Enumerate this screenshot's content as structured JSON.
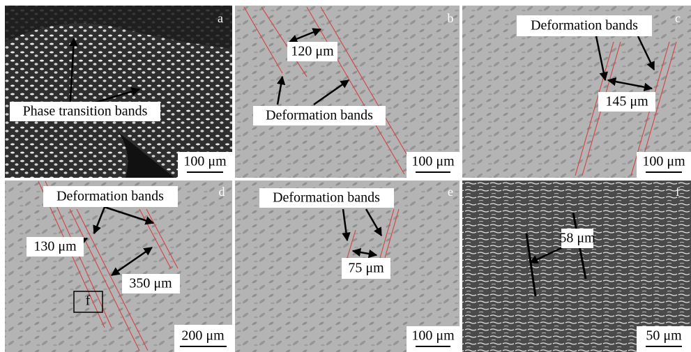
{
  "panels": [
    {
      "letter": "a",
      "labels": [
        "Phase transition bands"
      ],
      "scale": "100 μm"
    },
    {
      "letter": "b",
      "labels": [
        "120 μm",
        "Deformation bands"
      ],
      "scale": "100 μm"
    },
    {
      "letter": "c",
      "labels": [
        "Deformation bands",
        "145 μm"
      ],
      "scale": "100 μm"
    },
    {
      "letter": "d",
      "labels": [
        "Deformation bands",
        "130 μm",
        "350 μm",
        "f"
      ],
      "scale": "200 μm"
    },
    {
      "letter": "e",
      "labels": [
        "Deformation bands",
        "75 μm"
      ],
      "scale": "100 μm"
    },
    {
      "letter": "f",
      "labels": [
        "58 μm"
      ],
      "scale": "50 μm"
    }
  ]
}
